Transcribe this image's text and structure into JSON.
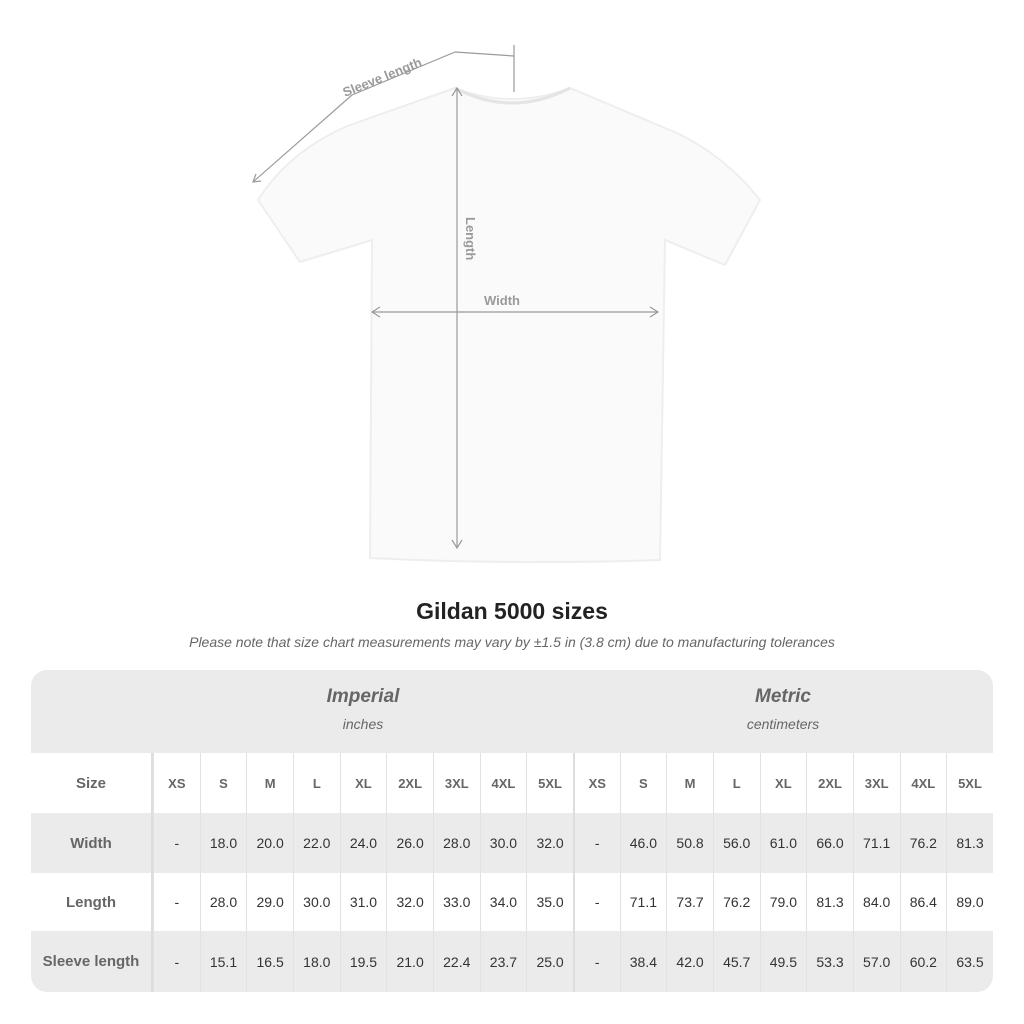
{
  "diagram": {
    "sleeve_label": "Sleeve length",
    "length_label": "Length",
    "width_label": "Width"
  },
  "title": "Gildan 5000 sizes",
  "note": "Please note that size chart measurements may vary by ±1.5 in (3.8 cm) due to manufacturing tolerances",
  "imperial": {
    "title": "Imperial",
    "unit": "inches"
  },
  "metric": {
    "title": "Metric",
    "unit": "centimeters"
  },
  "size_label": "Size",
  "sizes": [
    "XS",
    "S",
    "M",
    "L",
    "XL",
    "2XL",
    "3XL",
    "4XL",
    "5XL"
  ],
  "rows": [
    {
      "label": "Width",
      "imperial": [
        "-",
        "18.0",
        "20.0",
        "22.0",
        "24.0",
        "26.0",
        "28.0",
        "30.0",
        "32.0"
      ],
      "metric": [
        "-",
        "46.0",
        "50.8",
        "56.0",
        "61.0",
        "66.0",
        "71.1",
        "76.2",
        "81.3"
      ]
    },
    {
      "label": "Length",
      "imperial": [
        "-",
        "28.0",
        "29.0",
        "30.0",
        "31.0",
        "32.0",
        "33.0",
        "34.0",
        "35.0"
      ],
      "metric": [
        "-",
        "71.1",
        "73.7",
        "76.2",
        "79.0",
        "81.3",
        "84.0",
        "86.4",
        "89.0"
      ]
    },
    {
      "label": "Sleeve length",
      "imperial": [
        "-",
        "15.1",
        "16.5",
        "18.0",
        "19.5",
        "21.0",
        "22.4",
        "23.7",
        "25.0"
      ],
      "metric": [
        "-",
        "38.4",
        "42.0",
        "45.7",
        "49.5",
        "53.3",
        "57.0",
        "60.2",
        "63.5"
      ]
    }
  ]
}
